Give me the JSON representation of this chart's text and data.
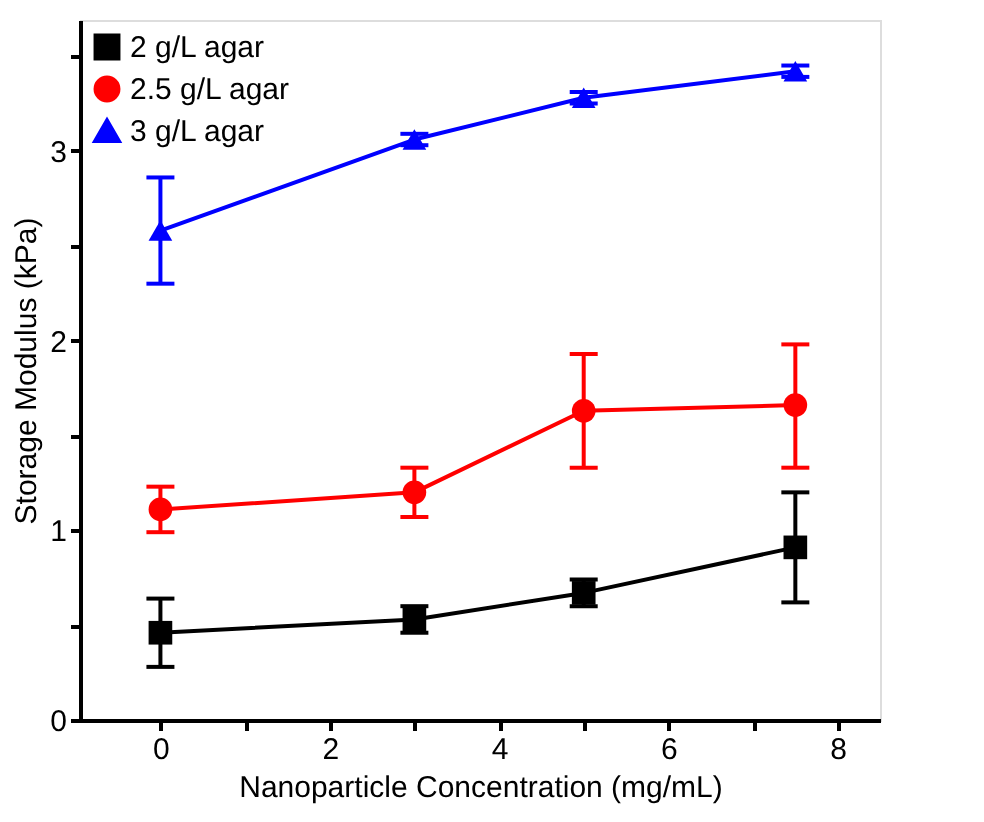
{
  "chart_data": {
    "type": "line",
    "xlabel": "Nanoparticle Concentration (mg/mL)",
    "ylabel": "Storage Modulus (kPa)",
    "x": [
      0,
      3,
      5,
      7.5
    ],
    "series": [
      {
        "name": "2 g/L agar",
        "color": "#000000",
        "marker": "square",
        "values": [
          0.46,
          0.53,
          0.67,
          0.91
        ],
        "errors": [
          0.18,
          0.07,
          0.07,
          [
            0.62,
            1.2
          ]
        ]
      },
      {
        "name": "2.5 g/L agar",
        "color": "#ff0000",
        "marker": "circle",
        "values": [
          1.11,
          1.2,
          1.63,
          1.66
        ],
        "errors": [
          0.12,
          0.13,
          0.3,
          [
            1.33,
            1.98
          ]
        ]
      },
      {
        "name": "3 g/L agar",
        "color": "#0000ff",
        "marker": "triangle",
        "values": [
          2.58,
          3.06,
          3.28,
          3.42
        ],
        "errors": [
          0.28,
          0.03,
          0.03,
          0.03
        ]
      }
    ],
    "xlim": [
      -0.95,
      8.5
    ],
    "ylim": [
      0,
      3.69
    ],
    "xticks": [
      0,
      {
        "value": 1,
        "label": null
      },
      2,
      {
        "value": 3,
        "label": null
      },
      4,
      {
        "value": 5,
        "label": null
      },
      6,
      {
        "value": 7,
        "label": null
      },
      8
    ],
    "yticks": [
      0,
      {
        "value": 0.5,
        "label": null
      },
      1,
      {
        "value": 1.5,
        "label": null
      },
      2,
      {
        "value": 2.5,
        "label": null
      },
      3,
      {
        "value": 3.5,
        "label": null
      }
    ],
    "grid": false,
    "legend": "top left",
    "line_style": "solid"
  }
}
